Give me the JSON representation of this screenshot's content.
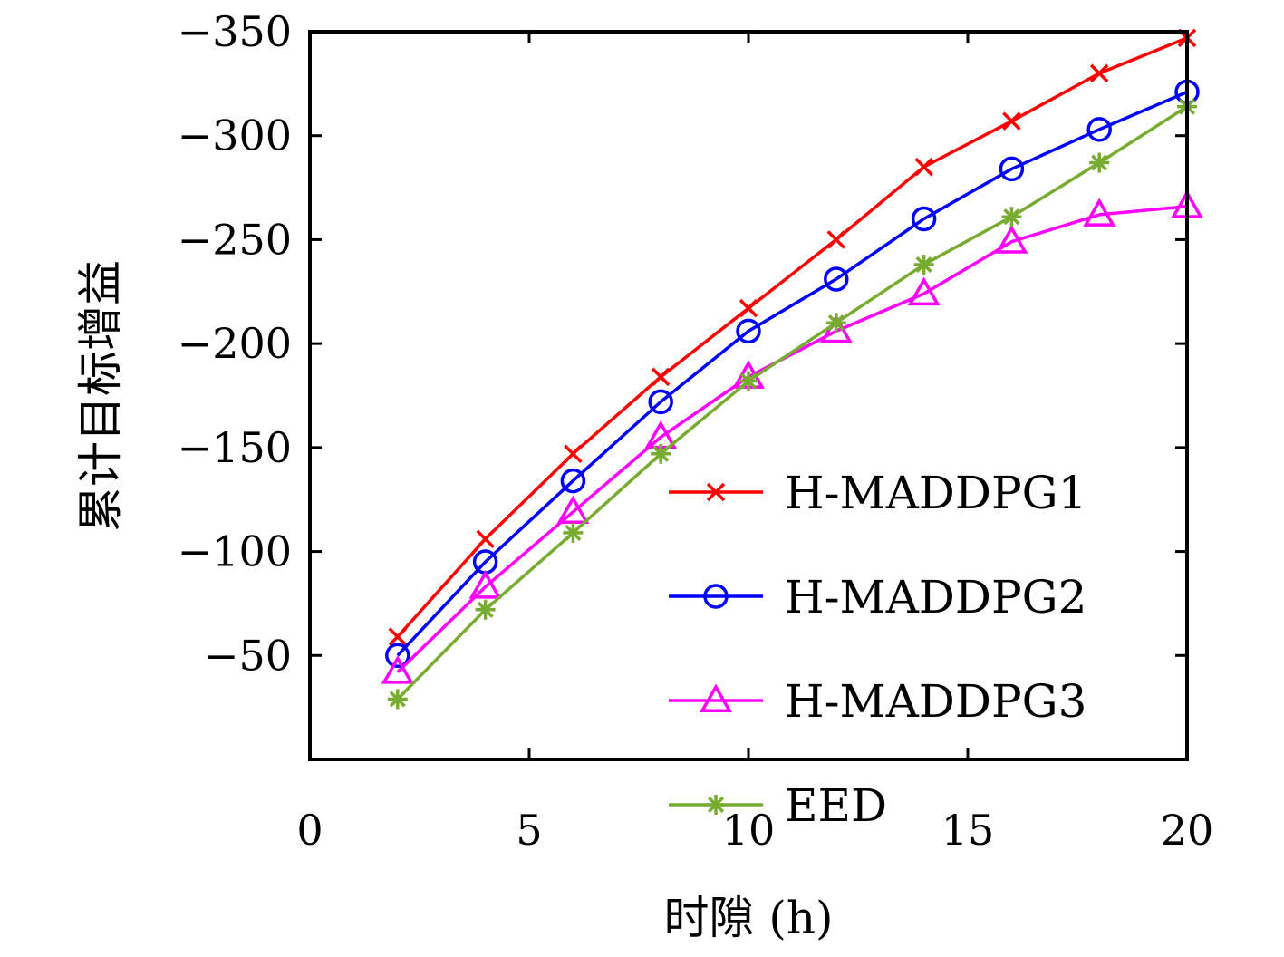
{
  "chart_data": {
    "type": "line",
    "title": "",
    "xlabel": "时隙 (h)",
    "ylabel": "累计目标增益",
    "xlim": [
      0,
      20
    ],
    "ylim": [
      0,
      -350
    ],
    "xticks": [
      0,
      5,
      10,
      15,
      20
    ],
    "xtick_labels": [
      "0",
      "5",
      "10",
      "15",
      "20"
    ],
    "yticks": [
      -50,
      -100,
      -150,
      -200,
      -250,
      -300,
      -350
    ],
    "ytick_labels": [
      "−50",
      "−100",
      "−150",
      "−200",
      "−250",
      "−300",
      "−350"
    ],
    "x": [
      2,
      4,
      6,
      8,
      10,
      12,
      14,
      16,
      18,
      20
    ],
    "grid": false,
    "legend_position": "bottom-right",
    "series": [
      {
        "name": "H-MADDPG1",
        "color": "#ff0000",
        "marker": "x",
        "values": [
          -59,
          -106,
          -147,
          -184,
          -217,
          -250,
          -285,
          -307,
          -330,
          -347
        ]
      },
      {
        "name": "H-MADDPG2",
        "color": "#0000ff",
        "marker": "circle",
        "values": [
          -50,
          -95,
          -134,
          -172,
          -206,
          -231,
          -260,
          -284,
          -303,
          -321
        ]
      },
      {
        "name": "H-MADDPG3",
        "color": "#ff00ff",
        "marker": "triangle",
        "values": [
          -42,
          -83,
          -119,
          -155,
          -184,
          -206,
          -224,
          -249,
          -262,
          -266
        ]
      },
      {
        "name": "EED",
        "color": "#77ac30",
        "marker": "asterisk",
        "values": [
          -29,
          -72,
          -109,
          -147,
          -182,
          -210,
          -238,
          -261,
          -287,
          -314
        ]
      }
    ]
  }
}
